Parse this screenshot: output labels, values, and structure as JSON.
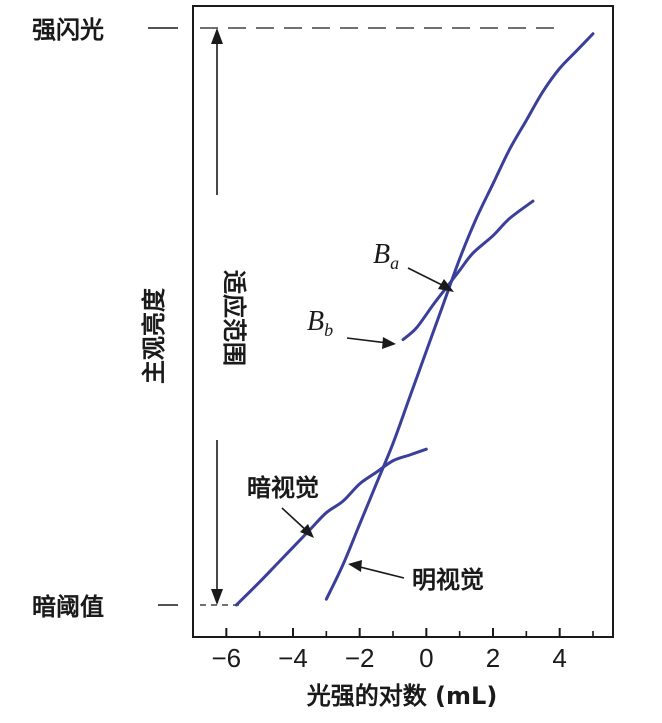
{
  "chart_data": {
    "type": "line",
    "xlabel": "光强的对数 (mL)",
    "ylabel": "主观亮度",
    "xlim": [
      -7,
      5.6
    ],
    "ylim": [
      0,
      100
    ],
    "x_ticks": [
      -6,
      -4,
      -2,
      0,
      2,
      4
    ],
    "x_tick_labels": [
      "−6",
      "−4",
      "−2",
      "0",
      "2",
      "4"
    ],
    "y_levels": [
      {
        "label": "强闪光",
        "value": 100
      },
      {
        "label": "暗阈值",
        "value": 0
      }
    ],
    "adaptation_range_label": "适应范围",
    "grid": false,
    "series": [
      {
        "name": "明视觉",
        "points": [
          [
            -3.0,
            1
          ],
          [
            -2.5,
            7
          ],
          [
            -2,
            14
          ],
          [
            -1.5,
            21
          ],
          [
            -1,
            28
          ],
          [
            -0.5,
            36
          ],
          [
            0,
            44
          ],
          [
            0.5,
            52
          ],
          [
            1,
            60
          ],
          [
            1.5,
            67
          ],
          [
            2,
            73
          ],
          [
            2.5,
            79
          ],
          [
            3,
            84
          ],
          [
            3.5,
            89
          ],
          [
            4,
            93
          ],
          [
            4.5,
            96
          ],
          [
            5,
            99
          ]
        ]
      },
      {
        "name": "暗视觉",
        "points": [
          [
            -5.7,
            0
          ],
          [
            -5,
            4
          ],
          [
            -4.5,
            7
          ],
          [
            -4,
            10
          ],
          [
            -3.5,
            13
          ],
          [
            -3,
            16
          ],
          [
            -2.5,
            18
          ],
          [
            -2,
            21
          ],
          [
            -1.5,
            23
          ],
          [
            -1,
            25
          ],
          [
            -0.5,
            26
          ],
          [
            0,
            27
          ]
        ]
      },
      {
        "name": "",
        "points": [
          [
            -0.7,
            46
          ],
          [
            -0.3,
            48
          ],
          [
            0.2,
            52
          ],
          [
            0.6,
            55
          ],
          [
            1.0,
            58
          ],
          [
            1.4,
            61
          ],
          [
            2,
            64
          ],
          [
            2.5,
            67
          ],
          [
            3.2,
            70
          ]
        ]
      }
    ],
    "annotations": [
      {
        "text": "Ba",
        "main": "B",
        "sub": "a"
      },
      {
        "text": "Bb",
        "main": "B",
        "sub": "b"
      },
      {
        "text": "暗视觉"
      },
      {
        "text": "明视觉"
      }
    ],
    "colors": {
      "curve": "#3a3f9a",
      "axis": "#1a1a1a"
    }
  }
}
